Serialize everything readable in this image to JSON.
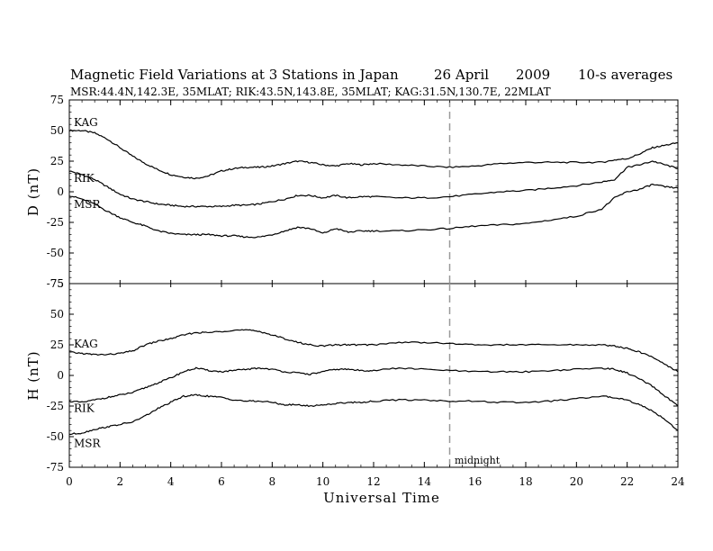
{
  "title": {
    "main": "Magnetic Field Variations at 3 Stations in Japan",
    "date": "26  April",
    "year": "2009",
    "averaging": "10-s averages",
    "stations": "MSR:44.4N,142.3E, 35MLAT;  RIK:43.5N,143.8E, 35MLAT;  KAG:31.5N,130.7E, 22MLAT"
  },
  "colors": {
    "line": "#000000",
    "midline": "#999999"
  },
  "chart_data": {
    "type": "line",
    "xlabel": "Universal Time",
    "xlim": [
      0,
      24
    ],
    "xticks": [
      0,
      2,
      4,
      6,
      8,
      10,
      12,
      14,
      16,
      18,
      20,
      22,
      24
    ],
    "annotation": {
      "text": "midnight",
      "x": 15
    },
    "panels": [
      {
        "name": "D",
        "ylabel": "D (nT)",
        "ylim": [
          -75,
          75
        ],
        "yticks": [
          75,
          50,
          25,
          0,
          -25,
          -50,
          -75
        ],
        "series": [
          {
            "name": "KAG",
            "x": [
              0,
              0.5,
              1,
              1.5,
              2,
              2.5,
              3,
              3.5,
              4,
              4.5,
              5,
              5.5,
              6,
              6.5,
              7,
              7.5,
              8,
              8.5,
              9,
              9.5,
              10,
              10.5,
              11,
              11.5,
              12,
              13,
              14,
              15,
              16,
              17,
              18,
              19,
              20,
              21,
              21.5,
              22,
              22.5,
              23,
              23.5,
              24
            ],
            "y": [
              50,
              50,
              48,
              43,
              36,
              29,
              23,
              18,
              14,
              12,
              11,
              13,
              17,
              19,
              20,
              20,
              21,
              23,
              25,
              24,
              22,
              21,
              23,
              22,
              23,
              22,
              21,
              20,
              21,
              23,
              24,
              24,
              24,
              24,
              26,
              27,
              31,
              36,
              38,
              40
            ]
          },
          {
            "name": "RIK",
            "x": [
              0,
              0.5,
              1,
              1.5,
              2,
              2.5,
              3,
              3.5,
              4,
              4.5,
              5,
              5.5,
              6,
              6.5,
              7,
              7.5,
              8,
              8.5,
              9,
              9.5,
              10,
              10.5,
              11,
              11.5,
              12,
              13,
              14,
              15,
              16,
              17,
              18,
              19,
              20,
              21,
              21.5,
              22,
              22.5,
              23,
              23.5,
              24
            ],
            "y": [
              17,
              14,
              10,
              4,
              -2,
              -6,
              -8,
              -10,
              -11,
              -12,
              -12,
              -12,
              -12,
              -11,
              -11,
              -10,
              -8,
              -6,
              -3,
              -3,
              -5,
              -3,
              -5,
              -4,
              -4,
              -5,
              -5,
              -4,
              -2,
              0,
              1,
              3,
              5,
              8,
              10,
              20,
              22,
              25,
              22,
              19
            ]
          },
          {
            "name": "MSR",
            "x": [
              0,
              0.5,
              1,
              1.5,
              2,
              2.5,
              3,
              3.5,
              4,
              4.5,
              5,
              5.5,
              6,
              6.5,
              7,
              7.5,
              8,
              8.5,
              9,
              9.5,
              10,
              10.5,
              11,
              11.5,
              12,
              13,
              14,
              15,
              16,
              17,
              18,
              19,
              20,
              21,
              21.5,
              22,
              22.5,
              23,
              23.5,
              24
            ],
            "y": [
              -3,
              -6,
              -10,
              -16,
              -21,
              -25,
              -28,
              -32,
              -34,
              -35,
              -35,
              -35,
              -36,
              -36,
              -37,
              -37,
              -35,
              -32,
              -29,
              -30,
              -34,
              -30,
              -33,
              -32,
              -32,
              -32,
              -31,
              -30,
              -28,
              -27,
              -26,
              -23,
              -20,
              -14,
              -5,
              0,
              2,
              6,
              4,
              3
            ]
          }
        ]
      },
      {
        "name": "H",
        "ylabel": "H (nT)",
        "ylim": [
          -75,
          75
        ],
        "yticks": [
          75,
          50,
          25,
          0,
          -25,
          -50,
          -75
        ],
        "series": [
          {
            "name": "KAG",
            "x": [
              0,
              0.5,
              1,
              1.5,
              2,
              2.5,
              3,
              3.5,
              4,
              4.5,
              5,
              5.5,
              6,
              6.5,
              7,
              7.5,
              8,
              8.5,
              9,
              9.5,
              10,
              10.5,
              11,
              11.5,
              12,
              13,
              14,
              15,
              16,
              17,
              18,
              19,
              20,
              21,
              21.5,
              22,
              22.5,
              23,
              23.5,
              24
            ],
            "y": [
              19,
              18,
              17,
              17,
              18,
              20,
              25,
              28,
              30,
              33,
              35,
              35,
              36,
              37,
              37,
              36,
              33,
              30,
              27,
              25,
              24,
              25,
              25,
              25,
              25,
              27,
              27,
              26,
              25,
              25,
              25,
              25,
              25,
              25,
              24,
              22,
              19,
              15,
              9,
              3
            ]
          },
          {
            "name": "RIK",
            "x": [
              0,
              0.5,
              1,
              1.5,
              2,
              2.5,
              3,
              3.5,
              4,
              4.5,
              5,
              5.5,
              6,
              6.5,
              7,
              7.5,
              8,
              8.5,
              9,
              9.5,
              10,
              10.5,
              11,
              11.5,
              12,
              13,
              14,
              15,
              16,
              17,
              18,
              19,
              20,
              21,
              21.5,
              22,
              22.5,
              23,
              23.5,
              24
            ],
            "y": [
              -21,
              -22,
              -20,
              -18,
              -16,
              -14,
              -10,
              -6,
              -2,
              3,
              6,
              4,
              3,
              4,
              5,
              6,
              5,
              3,
              2,
              1,
              3,
              5,
              5,
              4,
              4,
              6,
              5,
              4,
              3,
              3,
              3,
              4,
              5,
              6,
              5,
              2,
              -3,
              -9,
              -17,
              -25
            ]
          },
          {
            "name": "MSR",
            "x": [
              0,
              0.5,
              1,
              1.5,
              2,
              2.5,
              3,
              3.5,
              4,
              4.5,
              5,
              5.5,
              6,
              6.5,
              7,
              7.5,
              8,
              8.5,
              9,
              9.5,
              10,
              10.5,
              11,
              11.5,
              12,
              13,
              14,
              15,
              16,
              17,
              18,
              19,
              20,
              21,
              21.5,
              22,
              22.5,
              23,
              23.5,
              24
            ],
            "y": [
              -48,
              -47,
              -44,
              -42,
              -40,
              -38,
              -33,
              -27,
              -22,
              -17,
              -16,
              -17,
              -18,
              -20,
              -21,
              -21,
              -22,
              -24,
              -24,
              -25,
              -24,
              -23,
              -22,
              -22,
              -21,
              -20,
              -20,
              -21,
              -21,
              -22,
              -22,
              -21,
              -19,
              -17,
              -18,
              -20,
              -24,
              -29,
              -36,
              -45
            ]
          }
        ]
      }
    ]
  }
}
